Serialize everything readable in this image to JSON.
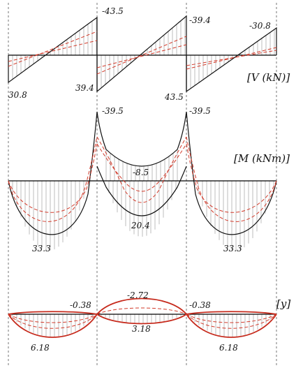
{
  "colors": {
    "envelope": "#111111",
    "hatch": "#7a7a7a",
    "case": "#d23a2a",
    "axis": "#000000",
    "support": "#555555"
  },
  "panels": {
    "shear": {
      "title": "[V (kN)]",
      "labels": {
        "a1_left": "30.8",
        "s1_left_top": "-43.5",
        "s1_left_bottom": "39.4",
        "s2_right_top": "-39.4",
        "s2_right_bottom": "43.5",
        "span3_top": "-30.8"
      }
    },
    "moment": {
      "title": "[M (kNm)]",
      "labels": {
        "support1": "-39.5",
        "support2": "-39.5",
        "span2_neg": "-8.5",
        "span2_pos": "20.4",
        "span1_pos": "33.3",
        "span3_pos": "33.3"
      }
    },
    "deflection": {
      "title": "[y]",
      "labels": {
        "left_neg": "-0.38",
        "mid_neg": "-2.72",
        "right_neg": "-0.38",
        "mid_pos": "3.18",
        "span1_pos": "6.18",
        "span3_pos": "6.18"
      }
    }
  }
}
